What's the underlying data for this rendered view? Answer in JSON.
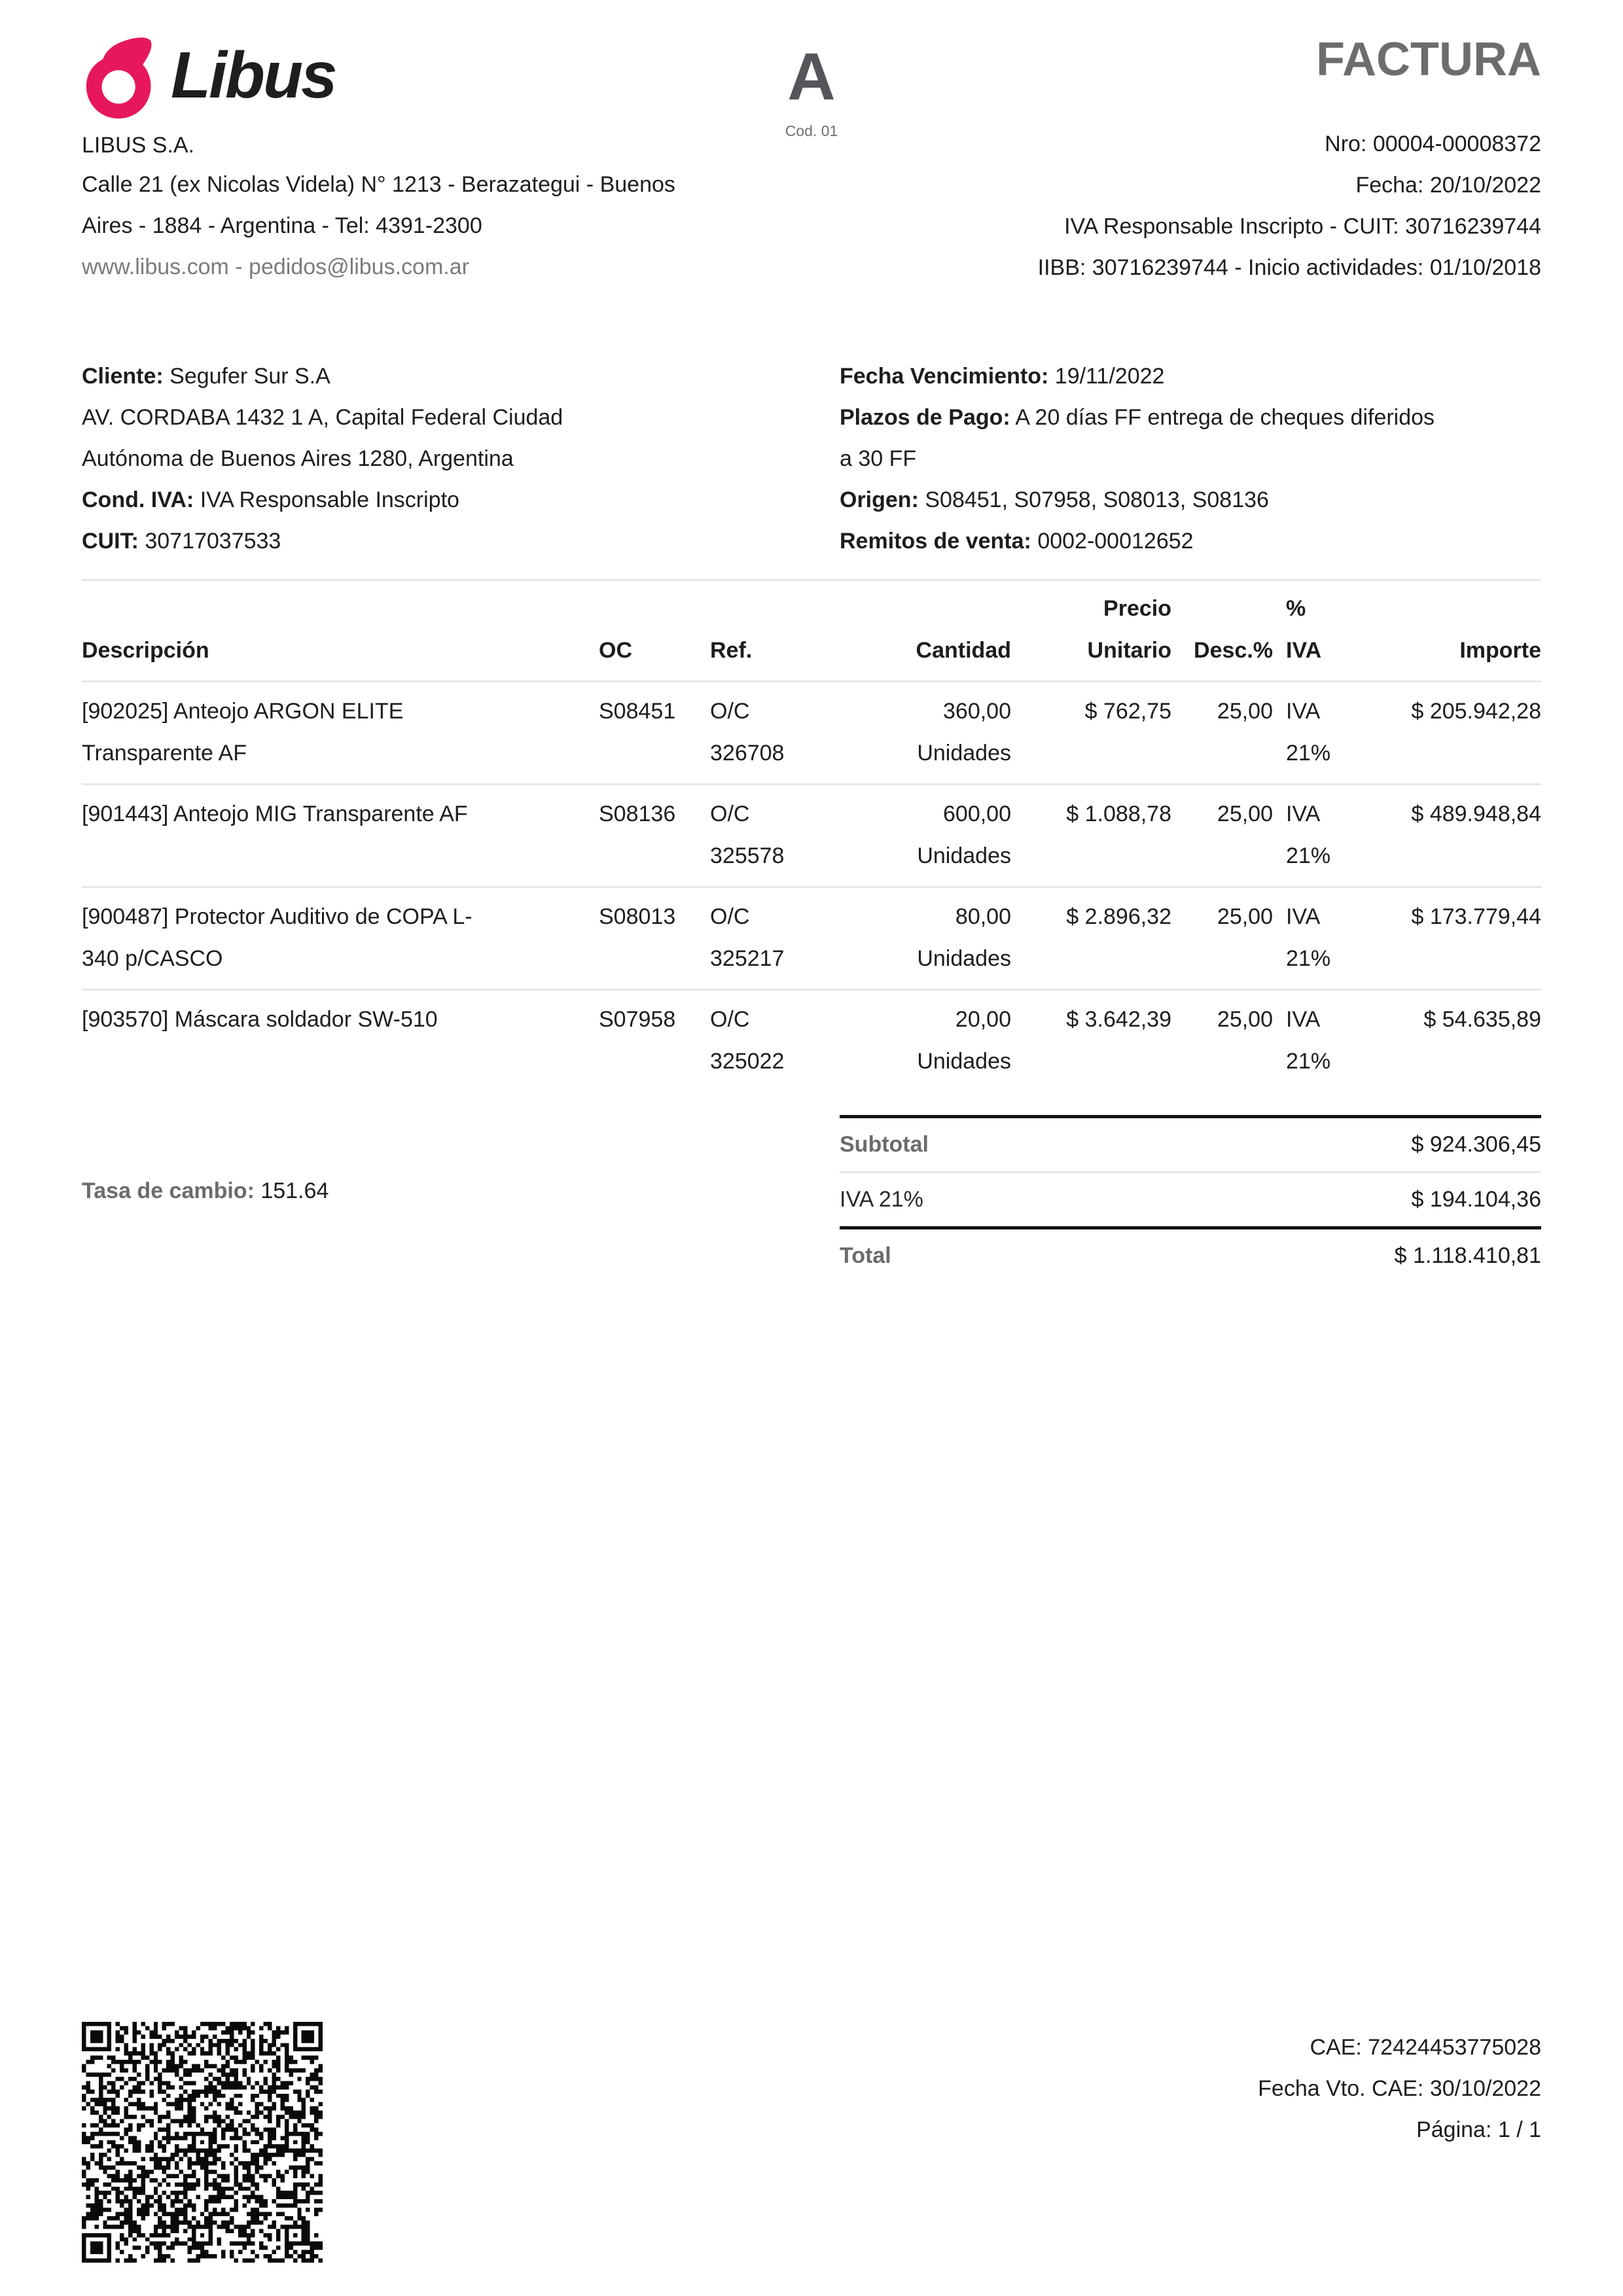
{
  "colors": {
    "brand_pink": "#E7175C",
    "text_dark": "#1D1D1B",
    "text_gray": "#6B6B6B",
    "line_light": "#E4E7EA",
    "line_dark": "#141414"
  },
  "company": {
    "logo_text": "Libus",
    "name": "LIBUS S.A.",
    "address1": "Calle 21 (ex Nicolas Videla) N° 1213 - Berazategui - Buenos",
    "address2": "Aires - 1884 - Argentina - Tel: 4391-2300",
    "web": "www.libus.com - pedidos@libus.com.ar"
  },
  "letter": {
    "code": "A",
    "cod": "Cod. 01"
  },
  "invoice": {
    "title": "FACTURA",
    "nro": "Nro: 00004-00008372",
    "fecha": "Fecha: 20/10/2022",
    "iva_line": "IVA Responsable Inscripto - CUIT: 30716239744",
    "iibb_line": "IIBB: 30716239744 - Inicio actividades: 01/10/2018"
  },
  "client": {
    "cliente_label": "Cliente:",
    "cliente": "Segufer Sur S.A",
    "address1": "AV. CORDABA 1432 1 A, Capital Federal Ciudad",
    "address2": "Autónoma de Buenos Aires 1280, Argentina",
    "cond_label": "Cond. IVA:",
    "cond": "IVA Responsable Inscripto",
    "cuit_label": "CUIT:",
    "cuit": "30717037533"
  },
  "payment": {
    "venc_label": "Fecha Vencimiento:",
    "venc": "19/11/2022",
    "plazos_label": "Plazos de Pago:",
    "plazos": "A 20 días FF entrega de cheques diferidos",
    "plazos2": "a 30 FF",
    "origen_label": "Origen:",
    "origen": "S08451, S07958, S08013, S08136",
    "remitos_label": "Remitos de venta:",
    "remitos": "0002-00012652"
  },
  "table": {
    "headers": {
      "desc": "Descripción",
      "oc": "OC",
      "ref": "Ref.",
      "qty": "Cantidad",
      "price1": "Precio",
      "price2": "Unitario",
      "disc": "Desc.%",
      "iva1": "%",
      "iva2": "IVA",
      "amount": "Importe"
    },
    "rows": [
      {
        "desc1": "[902025] Anteojo ARGON ELITE",
        "desc2": "Transparente AF",
        "oc": "S08451",
        "ref1": "O/C",
        "ref2": "326708",
        "qty1": "360,00",
        "qty2": "Unidades",
        "price": "$ 762,75",
        "disc": "25,00",
        "iva1": "IVA",
        "iva2": "21%",
        "amount": "$ 205.942,28"
      },
      {
        "desc1": "[901443] Anteojo MIG Transparente AF",
        "desc2": "",
        "oc": "S08136",
        "ref1": "O/C",
        "ref2": "325578",
        "qty1": "600,00",
        "qty2": "Unidades",
        "price": "$ 1.088,78",
        "disc": "25,00",
        "iva1": "IVA",
        "iva2": "21%",
        "amount": "$ 489.948,84"
      },
      {
        "desc1": "[900487] Protector Auditivo de COPA L-",
        "desc2": "340 p/CASCO",
        "oc": "S08013",
        "ref1": "O/C",
        "ref2": "325217",
        "qty1": "80,00",
        "qty2": "Unidades",
        "price": "$ 2.896,32",
        "disc": "25,00",
        "iva1": "IVA",
        "iva2": "21%",
        "amount": "$ 173.779,44"
      },
      {
        "desc1": "[903570] Máscara soldador SW-510",
        "desc2": "",
        "oc": "S07958",
        "ref1": "O/C",
        "ref2": "325022",
        "qty1": "20,00",
        "qty2": "Unidades",
        "price": "$ 3.642,39",
        "disc": "25,00",
        "iva1": "IVA",
        "iva2": "21%",
        "amount": "$ 54.635,89"
      }
    ]
  },
  "tasa": {
    "label": "Tasa de cambio:",
    "value": "151.64"
  },
  "totals": {
    "rows": [
      {
        "label": "Subtotal",
        "value": "$ 924.306,45"
      },
      {
        "label": "IVA 21%",
        "value": "$ 194.104,36"
      },
      {
        "label": "Total",
        "value": "$ 1.118.410,81"
      }
    ]
  },
  "footer": {
    "cae": "CAE: 72424453775028",
    "vto": "Fecha Vto. CAE: 30/10/2022",
    "pagina": "Página: 1 / 1"
  }
}
